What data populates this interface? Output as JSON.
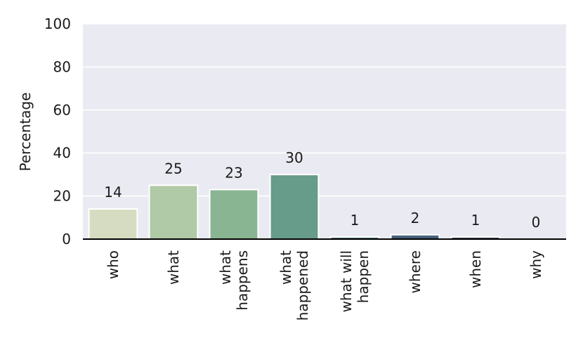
{
  "chart_data": {
    "type": "bar",
    "title": "",
    "xlabel": "",
    "ylabel": "Percentage",
    "ylim": [
      0,
      100
    ],
    "yticks": [
      0,
      20,
      40,
      60,
      80,
      100
    ],
    "grid": true,
    "categories": [
      [
        "who"
      ],
      [
        "what"
      ],
      [
        "what",
        "happens"
      ],
      [
        "what",
        "happened"
      ],
      [
        "what will",
        "happen"
      ],
      [
        "where"
      ],
      [
        "when"
      ],
      [
        "why"
      ]
    ],
    "values": [
      14,
      25,
      23,
      30,
      1,
      2,
      1,
      0
    ],
    "value_labels": [
      "14",
      "25",
      "23",
      "30",
      "1",
      "2",
      "1",
      "0"
    ],
    "colors": [
      "#d6dcc1",
      "#b0c9a6",
      "#8ab592",
      "#679b8a",
      "#4e6f7e",
      "#46607a",
      "#3a4a63",
      "#2b3147"
    ],
    "background": "#eaeaf2",
    "gridline_color": "#ffffff"
  }
}
